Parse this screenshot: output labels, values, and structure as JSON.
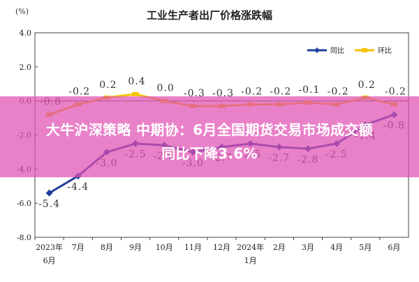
{
  "chart_data": {
    "type": "line",
    "title": "工业生产者出厂价格涨跌幅",
    "ylabel": "(%)",
    "ylim": [
      -8.0,
      4.0
    ],
    "yticks": [
      "4.0",
      "2.0",
      "0.0",
      "-2.0",
      "-4.0",
      "-6.0",
      "-8.0"
    ],
    "categories": [
      "2023年6月",
      "7月",
      "8月",
      "9月",
      "10月",
      "11月",
      "12月",
      "2024年1月",
      "2月",
      "3月",
      "4月",
      "5月",
      "6月"
    ],
    "category_lines": [
      [
        "2023年",
        "6月"
      ],
      [
        "7月"
      ],
      [
        "8月"
      ],
      [
        "9月"
      ],
      [
        "10月"
      ],
      [
        "11月"
      ],
      [
        "12月"
      ],
      [
        "2024年",
        "1月"
      ],
      [
        "2月"
      ],
      [
        "3月"
      ],
      [
        "4月"
      ],
      [
        "5月"
      ],
      [
        "6月"
      ]
    ],
    "legend_position": "top-right",
    "grid": false,
    "series": [
      {
        "name": "同比",
        "color": "#1f3f9a",
        "values": [
          -5.4,
          -4.4,
          -3.0,
          -2.5,
          -2.6,
          -3.0,
          -2.7,
          -2.5,
          -2.7,
          -2.8,
          -2.5,
          -1.4,
          -0.8
        ],
        "labels": [
          "-5.4",
          "-4.4",
          "-3.0",
          "-2.5",
          "-2.6",
          "-3.0",
          "-2.7",
          "-2.5",
          "-2.7",
          "-2.8",
          "-2.5",
          "-1.4",
          "-0.8"
        ]
      },
      {
        "name": "环比",
        "color": "#f5c100",
        "values": [
          -0.8,
          -0.2,
          0.2,
          0.4,
          0.0,
          -0.3,
          -0.3,
          -0.2,
          -0.2,
          -0.1,
          -0.2,
          0.2,
          -0.2
        ],
        "labels": [
          "-0.8",
          "-0.2",
          "0.2",
          "0.4",
          "0.0",
          "-0.3",
          "-0.3",
          "-0.2",
          "-0.2",
          "-0.1",
          "-0.2",
          "0.2",
          "-0.2"
        ]
      }
    ]
  },
  "overlay": {
    "line1": "大牛沪深策略 中期协：6月全国期货交易市场成交额",
    "line2": "同比下降3.6%"
  }
}
